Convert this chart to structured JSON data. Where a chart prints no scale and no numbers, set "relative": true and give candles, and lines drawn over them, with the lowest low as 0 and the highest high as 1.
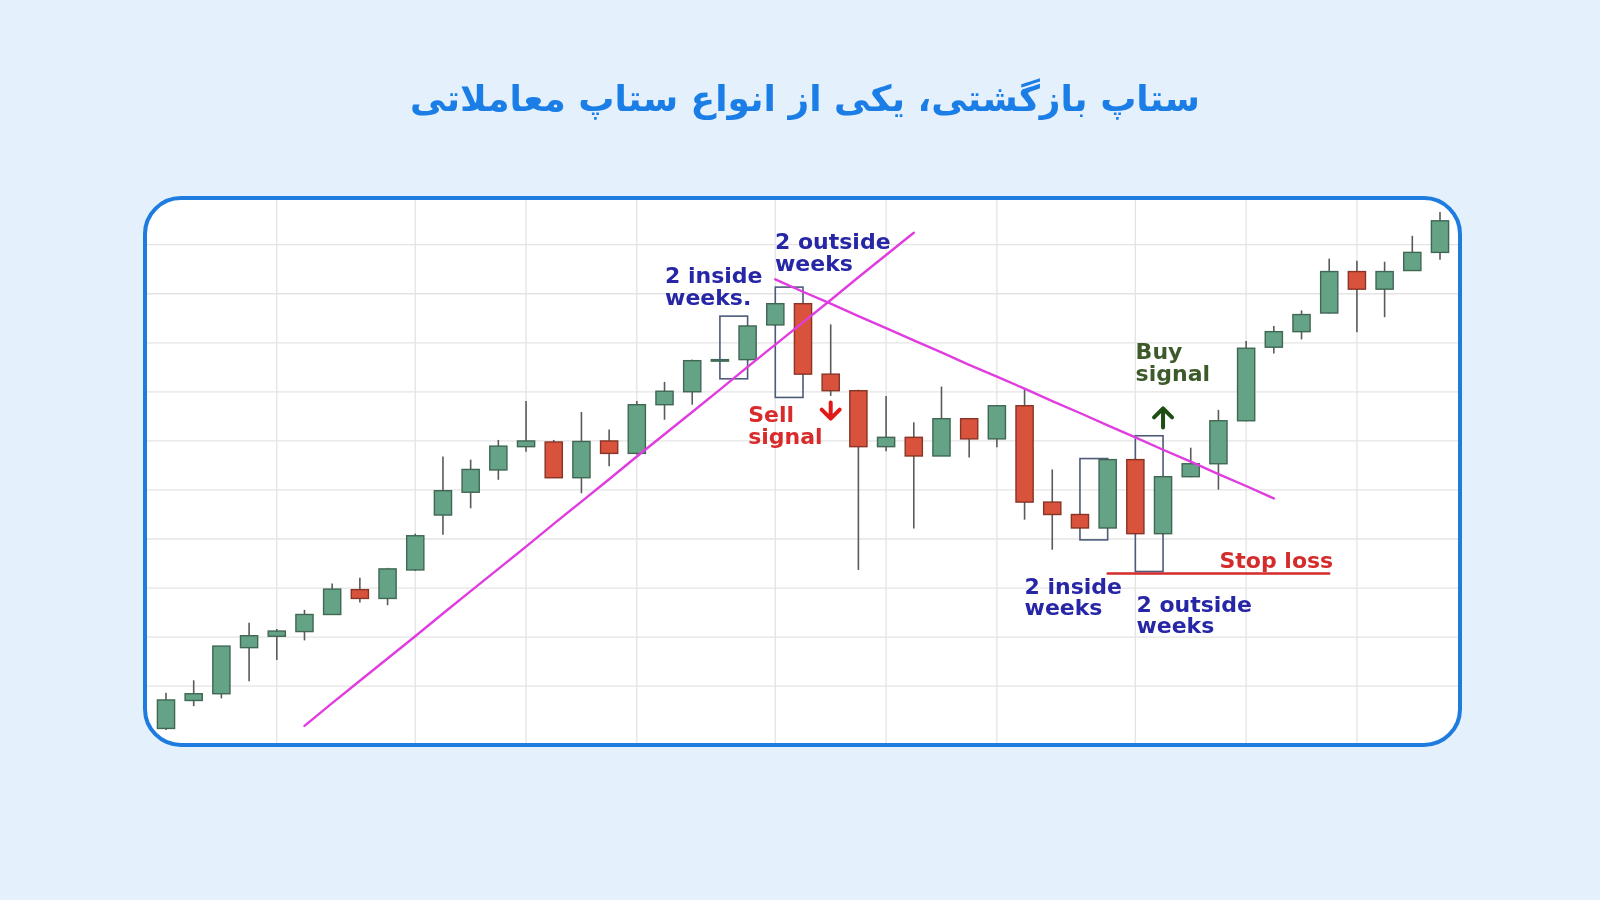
{
  "chart_data": {
    "type": "candlestick",
    "title": "ستاپ بازگشتی، یکی از انواع ستاپ معاملاتی",
    "relative": true,
    "grid": true,
    "categories": [
      null,
      null,
      null,
      null,
      null,
      null,
      null,
      null,
      null,
      null,
      null,
      null,
      null,
      null,
      null,
      null,
      null,
      null,
      null,
      null,
      null,
      null,
      null,
      null,
      null,
      null,
      null,
      null,
      null,
      null,
      null,
      null,
      null,
      null,
      null,
      null,
      null,
      null,
      null,
      null,
      null,
      null,
      null,
      null,
      null,
      null,
      null
    ],
    "ohlc": [
      [
        0.003,
        0.072,
        0,
        0.058
      ],
      [
        0.057,
        0.096,
        0.046,
        0.07
      ],
      [
        0.07,
        0.162,
        0.061,
        0.162
      ],
      [
        0.159,
        0.207,
        0.094,
        0.182
      ],
      [
        0.181,
        0.195,
        0.135,
        0.191
      ],
      [
        0.19,
        0.232,
        0.173,
        0.223
      ],
      [
        0.223,
        0.283,
        0.222,
        0.272
      ],
      [
        0.271,
        0.294,
        0.246,
        0.254
      ],
      [
        0.254,
        0.313,
        0.241,
        0.311
      ],
      [
        0.309,
        0.379,
        0.307,
        0.375
      ],
      [
        0.415,
        0.528,
        0.377,
        0.462
      ],
      [
        0.459,
        0.522,
        0.428,
        0.503
      ],
      [
        0.502,
        0.56,
        0.483,
        0.548
      ],
      [
        0.547,
        0.635,
        0.537,
        0.558
      ],
      [
        0.556,
        0.56,
        0.487,
        0.487
      ],
      [
        0.487,
        0.614,
        0.457,
        0.557
      ],
      [
        0.558,
        0.58,
        0.509,
        0.534
      ],
      [
        0.534,
        0.635,
        0.532,
        0.628
      ],
      [
        0.628,
        0.672,
        0.599,
        0.654
      ],
      [
        0.653,
        0.715,
        0.628,
        0.713
      ],
      [
        0.714,
        0.716,
        0.713,
        0.715
      ],
      [
        0.715,
        0.782,
        0.713,
        0.78
      ],
      [
        0.782,
        0.824,
        0.78,
        0.823
      ],
      [
        0.823,
        0.824,
        0.686,
        0.687
      ],
      [
        0.687,
        0.783,
        0.645,
        0.655
      ],
      [
        0.655,
        0.657,
        0.309,
        0.547
      ],
      [
        0.547,
        0.645,
        0.538,
        0.565
      ],
      [
        0.565,
        0.594,
        0.389,
        0.529
      ],
      [
        0.529,
        0.663,
        0.529,
        0.601
      ],
      [
        0.601,
        0.602,
        0.526,
        0.562
      ],
      [
        0.562,
        0.627,
        0.546,
        0.626
      ],
      [
        0.626,
        0.659,
        0.406,
        0.44
      ],
      [
        0.44,
        0.503,
        0.348,
        0.416
      ],
      [
        0.416,
        0.418,
        0.389,
        0.39
      ],
      [
        0.39,
        0.524,
        0.389,
        0.522
      ],
      [
        0.522,
        0.524,
        0.377,
        0.379
      ],
      [
        0.379,
        0.491,
        0.377,
        0.489
      ],
      [
        0.489,
        0.545,
        0.488,
        0.514
      ],
      [
        0.514,
        0.618,
        0.464,
        0.597
      ],
      [
        0.597,
        0.751,
        0.596,
        0.737
      ],
      [
        0.739,
        0.78,
        0.727,
        0.769
      ],
      [
        0.769,
        0.81,
        0.754,
        0.802
      ],
      [
        0.805,
        0.91,
        0.804,
        0.885
      ],
      [
        0.885,
        0.906,
        0.768,
        0.851
      ],
      [
        0.851,
        0.904,
        0.797,
        0.885
      ],
      [
        0.887,
        0.954,
        0.886,
        0.922
      ],
      [
        0.922,
        1,
        0.908,
        0.983
      ]
    ],
    "colors": [
      "#65a386",
      "#65a386",
      "#65a386",
      "#65a386",
      "#65a386",
      "#65a386",
      "#65a386",
      "#d9533c",
      "#65a386",
      "#65a386",
      "#65a386",
      "#65a386",
      "#65a386",
      "#65a386",
      "#d9533c",
      "#65a386",
      "#d9533c",
      "#65a386",
      "#65a386",
      "#65a386",
      "#65a386",
      "#65a386",
      "#65a386",
      "#d9533c",
      "#d9533c",
      "#d9533c",
      "#65a386",
      "#d9533c",
      "#65a386",
      "#d9533c",
      "#65a386",
      "#d9533c",
      "#d9533c",
      "#d9533c",
      "#65a386",
      "#d9533c",
      "#65a386",
      "#65a386",
      "#65a386",
      "#65a386",
      "#65a386",
      "#65a386",
      "#65a386",
      "#d9533c",
      "#65a386",
      "#65a386",
      "#65a386"
    ],
    "series": [
      {
        "type": "line",
        "color": "#e03ce0",
        "values": [
          null,
          null,
          null,
          null,
          null,
          0.008,
          0.052,
          0.095,
          0.138,
          0.181,
          0.225,
          0.268,
          0.311,
          0.354,
          0.398,
          0.441,
          0.484,
          0.528,
          0.571,
          0.614,
          0.657,
          0.701,
          0.744,
          0.787,
          0.83,
          0.874,
          0.917,
          0.96,
          null,
          null,
          null,
          null,
          null,
          null,
          null,
          null,
          null,
          null,
          null,
          null,
          null,
          null,
          null,
          null,
          null,
          null,
          null
        ]
      },
      {
        "type": "line",
        "color": "#e03ce0",
        "values": [
          null,
          null,
          null,
          null,
          null,
          null,
          null,
          null,
          null,
          null,
          null,
          null,
          null,
          null,
          null,
          null,
          null,
          null,
          null,
          null,
          null,
          null,
          0.87,
          0.846,
          0.823,
          0.799,
          0.776,
          0.752,
          0.729,
          0.705,
          0.682,
          0.659,
          0.635,
          0.612,
          0.588,
          0.565,
          0.541,
          0.518,
          0.494,
          0.471,
          0.447,
          null,
          null,
          null,
          null,
          null,
          null
        ]
      },
      {
        "type": "line",
        "name": "Stop loss",
        "color": "#d42b2b",
        "values": [
          null,
          null,
          null,
          null,
          null,
          null,
          null,
          null,
          null,
          null,
          null,
          null,
          null,
          null,
          null,
          null,
          null,
          null,
          null,
          null,
          null,
          null,
          null,
          null,
          null,
          null,
          null,
          null,
          null,
          null,
          null,
          null,
          null,
          null,
          0.302,
          0.302,
          0.302,
          0.302,
          0.302,
          0.302,
          0.302,
          0.302,
          0.302,
          null,
          null,
          null,
          null
        ]
      }
    ],
    "annotations": [
      "2 inside weeks.",
      "2 outside weeks",
      "Sell signal",
      "Buy signal",
      "2 inside weeks",
      "2 outside weeks"
    ]
  }
}
